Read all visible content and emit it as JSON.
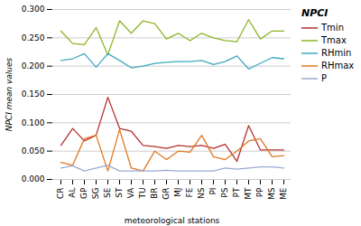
{
  "chart_data": {
    "type": "line",
    "categories": [
      "CR",
      "AL",
      "GP",
      "SG",
      "SE",
      "ST",
      "VA",
      "TU",
      "BR",
      "GR",
      "MJ",
      "FE",
      "NS",
      "PI",
      "PS",
      "PT",
      "MT",
      "PP",
      "MS",
      "ME"
    ],
    "series": [
      {
        "name": "Tmin",
        "color": "#b5312c",
        "values": [
          0.06,
          0.09,
          0.068,
          0.078,
          0.145,
          0.09,
          0.085,
          0.06,
          0.058,
          0.055,
          0.06,
          0.058,
          0.06,
          0.055,
          0.062,
          0.032,
          0.095,
          0.052,
          0.052,
          0.052
        ]
      },
      {
        "name": "Tmax",
        "color": "#8eb525",
        "values": [
          0.262,
          0.24,
          0.238,
          0.268,
          0.22,
          0.28,
          0.258,
          0.28,
          0.275,
          0.248,
          0.258,
          0.245,
          0.258,
          0.25,
          0.245,
          0.243,
          0.282,
          0.248,
          0.262,
          0.262
        ]
      },
      {
        "name": "RHmin",
        "color": "#3eaabf",
        "values": [
          0.21,
          0.213,
          0.222,
          0.198,
          0.222,
          0.21,
          0.197,
          0.2,
          0.205,
          0.207,
          0.208,
          0.208,
          0.21,
          0.203,
          0.208,
          0.218,
          0.195,
          0.205,
          0.215,
          0.213
        ]
      },
      {
        "name": "RHmax",
        "color": "#e07820",
        "values": [
          0.03,
          0.025,
          0.072,
          0.078,
          0.015,
          0.088,
          0.02,
          0.015,
          0.05,
          0.035,
          0.05,
          0.048,
          0.078,
          0.04,
          0.035,
          0.05,
          0.068,
          0.072,
          0.04,
          0.042
        ]
      },
      {
        "name": "P",
        "color": "#9baad4",
        "values": [
          0.02,
          0.024,
          0.015,
          0.02,
          0.025,
          0.015,
          0.015,
          0.015,
          0.015,
          0.016,
          0.015,
          0.015,
          0.015,
          0.015,
          0.02,
          0.018,
          0.02,
          0.022,
          0.022,
          0.02
        ]
      }
    ],
    "xlabel": "meteorological stations",
    "ylabel": "NPCI mean values",
    "legend_title": "NPCI",
    "legend": "right",
    "ylim": [
      0.0,
      0.3
    ],
    "yticks": [
      {
        "value": 0.0,
        "label": "0.000"
      },
      {
        "value": 0.05,
        "label": "0.050"
      },
      {
        "value": 0.1,
        "label": "0.100"
      },
      {
        "value": 0.15,
        "label": "0.150"
      },
      {
        "value": 0.2,
        "label": "0.200"
      },
      {
        "value": 0.25,
        "label": "0.250"
      },
      {
        "value": 0.3,
        "label": "0.300"
      }
    ],
    "grid": true
  }
}
